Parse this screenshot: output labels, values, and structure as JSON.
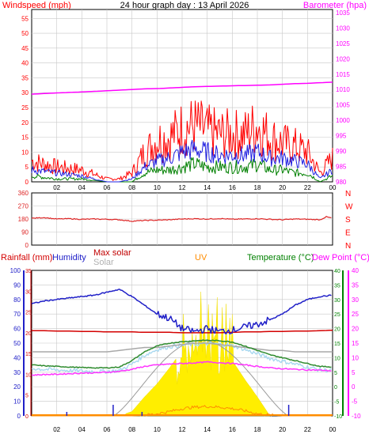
{
  "title": "24 hour graph day : 13 April 2026",
  "colors": {
    "wind": "#ff0000",
    "gust": "#ff0000",
    "avgwind": "#2020e0",
    "lull": "#008000",
    "baro": "#ff00ff",
    "dir": "#dd2222",
    "grid": "#c8c8c8",
    "rain": "#d40000",
    "humidity": "#2020c8",
    "solar": "#a0a0a0",
    "maxsolar": "#c8c8c8",
    "uv": "#ff8c00",
    "temp": "#2e8b2e",
    "dew": "#ff33ff",
    "feels": "#a8d8f0",
    "sun": "#ffee00"
  },
  "panel1": {
    "left_label": "Windspeed (mph)",
    "right_label": "Barometer (hpa)",
    "left_ticks": [
      "0",
      "5",
      "10",
      "15",
      "20",
      "25",
      "30",
      "35",
      "40",
      "45",
      "50",
      "55"
    ],
    "right_ticks": [
      "980",
      "985",
      "990",
      "995",
      "1000",
      "1005",
      "1010",
      "1015",
      "1020",
      "1025",
      "1030",
      "1035"
    ]
  },
  "panel2": {
    "left_ticks": [
      "0",
      "90",
      "180",
      "270",
      "360"
    ],
    "compass": [
      "N",
      "W",
      "S",
      "E",
      "N"
    ]
  },
  "panel3": {
    "labels": {
      "rain": "Rainfall (mm)",
      "humidity": "Humidity",
      "maxsolar": "Max solar",
      "solar": "Solar",
      "uv": "UV",
      "temp": "Temperature (°C)",
      "dew": "Dew Point (°C)"
    },
    "humidity_ticks": [
      "0",
      "10",
      "20",
      "30",
      "40",
      "50",
      "60",
      "70",
      "80",
      "90",
      "100"
    ],
    "rain_ticks": [
      "0",
      "5",
      "10",
      "15",
      "20",
      "25",
      "30",
      "35"
    ],
    "temp_ticks": [
      "-10",
      "-5",
      "0",
      "5",
      "10",
      "15",
      "20",
      "25",
      "30",
      "35",
      "40"
    ]
  },
  "x_ticks": [
    "02",
    "04",
    "06",
    "08",
    "10",
    "12",
    "14",
    "16",
    "18",
    "20",
    "22",
    "00"
  ],
  "chart_data": [
    {
      "type": "line",
      "title": "24 hour graph day : 13 April 2026",
      "x": [
        0,
        2,
        4,
        6,
        7,
        8,
        9,
        10,
        11,
        12,
        13,
        14,
        15,
        16,
        17,
        18,
        19,
        20,
        21,
        22,
        23,
        24
      ],
      "series": [
        {
          "name": "Gust",
          "axis": "left",
          "values": [
            7,
            5,
            4,
            1,
            1,
            3,
            10,
            14,
            15,
            18,
            19,
            17,
            16,
            16,
            16,
            19,
            15,
            13,
            12,
            10,
            3,
            8
          ]
        },
        {
          "name": "Average",
          "axis": "left",
          "values": [
            4,
            3,
            2,
            0,
            0,
            1,
            5,
            7,
            8,
            10,
            11,
            10,
            9,
            9,
            9,
            10,
            8,
            8,
            7,
            6,
            1,
            4
          ]
        },
        {
          "name": "Lull",
          "axis": "left",
          "values": [
            2,
            1,
            1,
            0,
            0,
            0,
            3,
            4,
            4,
            5,
            6,
            5,
            5,
            5,
            5,
            6,
            4,
            4,
            3,
            3,
            0,
            2
          ]
        },
        {
          "name": "Barometer",
          "axis": "right",
          "values": [
            1008.5,
            1008.9,
            1009.2,
            1009.6,
            1009.8,
            1010.0,
            1010.2,
            1010.3,
            1010.5,
            1010.7,
            1010.9,
            1011.0,
            1011.1,
            1011.2,
            1011.3,
            1011.4,
            1011.5,
            1011.7,
            1011.9,
            1012.0,
            1012.2,
            1012.4
          ]
        }
      ],
      "ylim_left": [
        0,
        58
      ],
      "ylim_right": [
        980,
        1036
      ]
    },
    {
      "type": "line",
      "x": [
        0,
        1,
        2,
        3,
        4,
        5,
        6,
        7,
        8,
        9,
        10,
        11,
        12,
        13,
        14,
        15,
        16,
        17,
        18,
        19,
        20,
        21,
        22,
        23,
        23.5,
        24
      ],
      "series": [
        {
          "name": "Wind direction",
          "values": [
            185,
            190,
            180,
            182,
            178,
            180,
            178,
            175,
            165,
            170,
            172,
            175,
            180,
            182,
            180,
            183,
            178,
            180,
            182,
            178,
            175,
            180,
            178,
            175,
            195,
            185
          ]
        }
      ],
      "ylim": [
        0,
        360
      ]
    },
    {
      "type": "line",
      "x": [
        0,
        1,
        2,
        3,
        4,
        5,
        6,
        7,
        8,
        9,
        10,
        11,
        12,
        13,
        14,
        15,
        16,
        17,
        18,
        19,
        20,
        21,
        22,
        23,
        24
      ],
      "series": [
        {
          "name": "Humidity",
          "axis": "humidity",
          "values": [
            77,
            79,
            80,
            81,
            82,
            83,
            85,
            87,
            82,
            76,
            70,
            67,
            60,
            58,
            60,
            58,
            59,
            61,
            63,
            66,
            70,
            76,
            80,
            82,
            83
          ]
        },
        {
          "name": "Rainfall",
          "axis": "rain",
          "values": [
            20.5,
            20.5,
            20.4,
            20.4,
            20.3,
            20.3,
            20.2,
            20.2,
            20.2,
            20.1,
            20.1,
            20.1,
            20.0,
            20.0,
            20.0,
            20.0,
            20.1,
            20.2,
            20.2,
            20.3,
            20.3,
            20.4,
            20.4,
            20.5,
            20.6
          ]
        },
        {
          "name": "Max solar",
          "axis": "humidity",
          "values": [
            44,
            44,
            44,
            44,
            44,
            44,
            44,
            45,
            46,
            47,
            47,
            48,
            49,
            50,
            50,
            49,
            48,
            47,
            46,
            45,
            45,
            44,
            44,
            44,
            44
          ]
        },
        {
          "name": "Temperature",
          "axis": "temp",
          "values": [
            7.5,
            7.2,
            7.0,
            6.8,
            6.6,
            6.5,
            6.5,
            6.8,
            9.0,
            12.0,
            14.0,
            15.0,
            15.5,
            15.8,
            16.0,
            15.8,
            15.4,
            14.0,
            12.5,
            11.0,
            10.0,
            9.0,
            8.0,
            7.0,
            6.8
          ]
        },
        {
          "name": "Dew Point",
          "axis": "temp",
          "values": [
            4.0,
            4.2,
            4.3,
            4.5,
            4.7,
            4.8,
            5.0,
            5.3,
            6.0,
            7.0,
            7.5,
            7.8,
            8.0,
            8.2,
            8.5,
            8.3,
            8.0,
            7.5,
            7.0,
            6.5,
            6.2,
            6.0,
            5.8,
            5.7,
            5.5
          ]
        },
        {
          "name": "Solar",
          "axis": "humidity",
          "values": [
            0,
            0,
            0,
            0,
            0,
            0,
            0,
            0,
            3,
            13,
            22,
            33,
            45,
            50,
            52,
            48,
            38,
            25,
            13,
            0,
            0,
            0,
            0,
            0,
            0
          ]
        },
        {
          "name": "UV",
          "axis": "humidity",
          "values": [
            0,
            0,
            0,
            0,
            0,
            0,
            0,
            0,
            0,
            0.5,
            1.5,
            3,
            5,
            6,
            6.5,
            6,
            5,
            3.5,
            1.5,
            0.5,
            0,
            0,
            0,
            0,
            0
          ]
        }
      ],
      "ylim_humidity": [
        0,
        100
      ],
      "ylim_rain": [
        0,
        35
      ],
      "ylim_temp": [
        -10,
        40
      ]
    }
  ]
}
